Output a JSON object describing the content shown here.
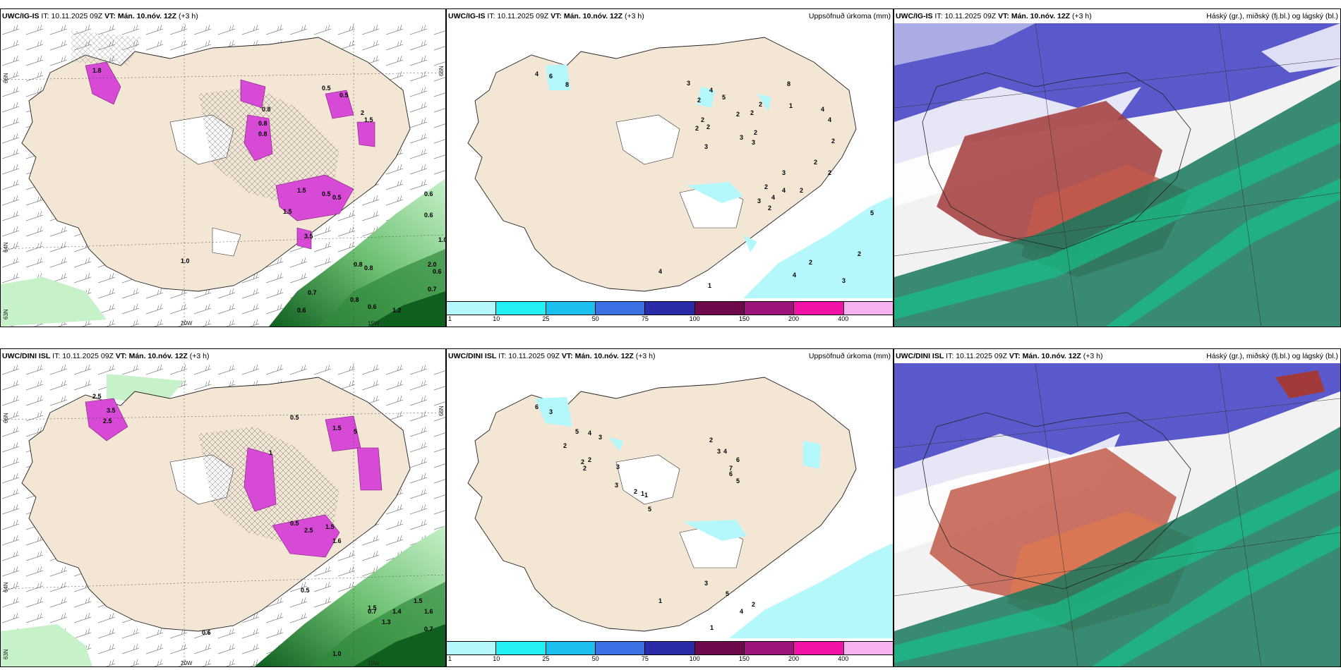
{
  "rows": [
    {
      "model": "UWC/IG-IS",
      "init_prefix": "IT:",
      "init_time": "10.11.2025 09Z",
      "valid_prefix": "VT:",
      "valid_time": "Mán. 10.nóv. 12Z",
      "lead": "(+3 h)",
      "precip_title": "Uppsöfnuð úrkoma (mm)",
      "cloud_title": "Háský (gr.), miðský (fj.bl.) og lágský (bl.)",
      "lat_labels": [
        "66N",
        "64N",
        "63N"
      ],
      "lon_labels": [
        "20W",
        "15W"
      ],
      "right_lat_label": "66N",
      "wind_precip_labels": [
        "1.8",
        "0.5",
        "0.5",
        "0.8",
        "0.8",
        "0.8",
        "2",
        "1.5",
        "0.5",
        "1.5",
        "0.5",
        "1.5",
        "3.5",
        "1.0",
        "0.6",
        "0.6",
        "1.0",
        "0.8",
        "0.8",
        "0.7",
        "0.6",
        "1.2",
        "0.6",
        "0.7",
        "2.0",
        "0.6",
        "0.8"
      ],
      "precip_accum_labels": [
        "4",
        "6",
        "8",
        "3",
        "2",
        "4",
        "5",
        "2",
        "2",
        "2",
        "3",
        "2",
        "2",
        "3",
        "3",
        "2",
        "2",
        "1",
        "8",
        "4",
        "4",
        "2",
        "2",
        "2",
        "2",
        "4",
        "4",
        "3",
        "3",
        "2",
        "2",
        "5",
        "2",
        "2",
        "4",
        "3",
        "4",
        "1"
      ]
    },
    {
      "model": "UWC/DINI ISL",
      "init_prefix": "IT:",
      "init_time": "10.11.2025 09Z",
      "valid_prefix": "VT:",
      "valid_time": "Mán. 10.nóv. 12Z",
      "lead": "(+3 h)",
      "precip_title": "Uppsöfnuð úrkoma (mm)",
      "cloud_title": "Háský (gr.), miðský (fj.bl.) og lágský (bl.)",
      "lat_labels": [
        "66N",
        "64N",
        "63N"
      ],
      "lon_labels": [
        "20W",
        "15W"
      ],
      "right_lat_label": "66N",
      "wind_precip_labels": [
        "2.5",
        "3.5",
        "2.5",
        "0.5",
        "1.5",
        "1",
        "5",
        "0.5",
        "2.5",
        "1.5",
        "1.6",
        "0.5",
        "0.6",
        "1.5",
        "1.3",
        "1.5",
        "0.7",
        "1.0",
        "0.7",
        "1.4",
        "1.6"
      ],
      "precip_accum_labels": [
        "6",
        "3",
        "5",
        "4",
        "3",
        "2",
        "2",
        "2",
        "2",
        "3",
        "3",
        "2",
        "1",
        "1",
        "5",
        "2",
        "3",
        "4",
        "6",
        "7",
        "6",
        "5",
        "1",
        "3",
        "5",
        "2",
        "4",
        "1"
      ]
    }
  ],
  "precip_legend": {
    "tick_labels": [
      "1",
      "10",
      "25",
      "50",
      "75",
      "100",
      "150",
      "200",
      "400"
    ],
    "colors": [
      "#b4f8fb",
      "#22f0f5",
      "#1bc0ee",
      "#3a72e6",
      "#2b2ba8",
      "#6e0a4c",
      "#9c1479",
      "#f212a8",
      "#f6b2f0"
    ]
  },
  "colors": {
    "land": "#f4e6d5",
    "sea": "#ffffff",
    "precip_light": "#b4f8fb",
    "wind_green_light": "#c6f1c9",
    "wind_green_mid": "#6dbf71",
    "wind_green_dark": "#0f5f1f",
    "magenta": "#d64ad6",
    "cloud_high": "#12c98f",
    "cloud_mid": "#a23a3a",
    "cloud_low": "#5050c8"
  }
}
